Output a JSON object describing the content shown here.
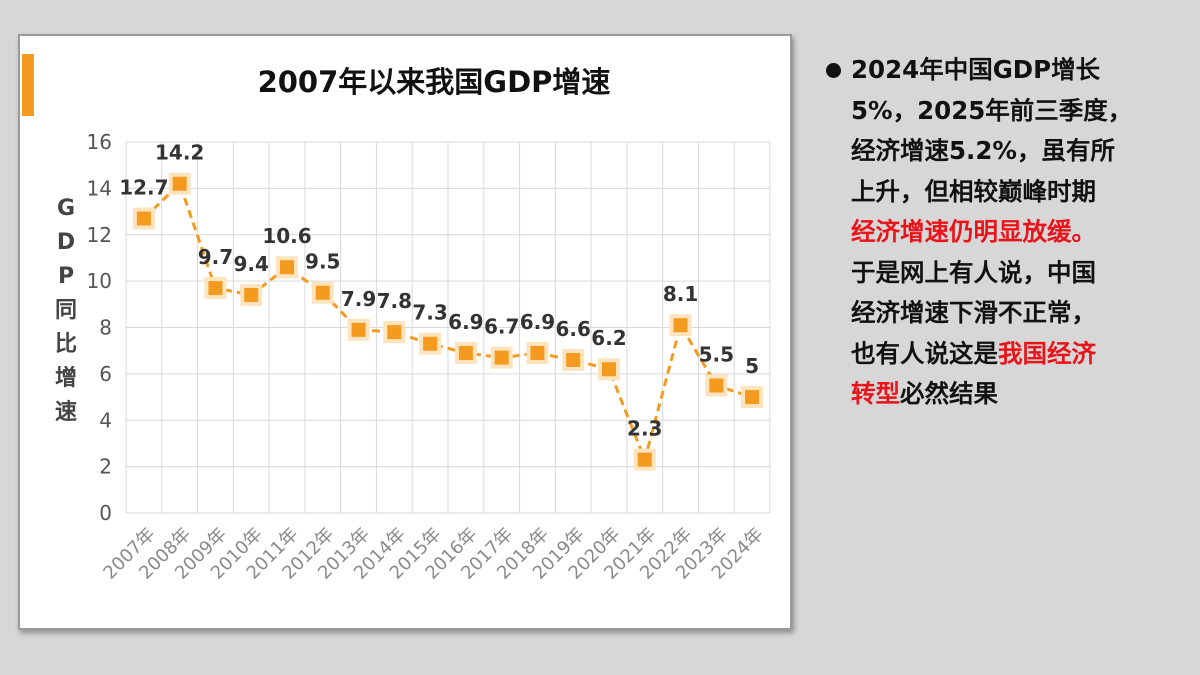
{
  "chart_data": {
    "type": "line",
    "title": "2007年以来我国GDP增速",
    "ylabel": "GDP同比增速",
    "xlabel": "",
    "categories": [
      "2007年",
      "2008年",
      "2009年",
      "2010年",
      "2011年",
      "2012年",
      "2013年",
      "2014年",
      "2015年",
      "2016年",
      "2017年",
      "2018年",
      "2019年",
      "2020年",
      "2021年",
      "2022年",
      "2023年",
      "2024年"
    ],
    "values": [
      12.7,
      14.2,
      9.7,
      9.4,
      10.6,
      9.5,
      7.9,
      7.8,
      7.3,
      6.9,
      6.7,
      6.9,
      6.6,
      6.2,
      2.3,
      8.1,
      5.5,
      5
    ],
    "data_labels": [
      "12.7",
      "14.2",
      "9.7",
      "9.4",
      "10.6",
      "9.5",
      "7.9",
      "7.8",
      "7.3",
      "6.9",
      "6.7",
      "6.9",
      "6.6",
      "6.2",
      "2.3",
      "8.1",
      "5.5",
      "5"
    ],
    "ylim": [
      0,
      16
    ],
    "yticks": [
      "0",
      "2",
      "4",
      "6",
      "8",
      "10",
      "12",
      "14",
      "16"
    ],
    "grid": true,
    "line_style": "dashed",
    "marker": "square",
    "colors": {
      "line": "#f39a1f",
      "marker": "#f39a1f",
      "marker_glow": "#fde4bf",
      "grid": "#d9d9d9",
      "accent": "#f39a1f"
    }
  },
  "side_text": {
    "segments": [
      {
        "text": "2024年中国GDP增长\n5%，2025年前三季度，\n经济增速5.2%，虽有所\n上升，但相较巅峰时期\n",
        "highlight": false
      },
      {
        "text": "经济增速仍明显放缓。",
        "highlight": true
      },
      {
        "text": "\n于是网上有人说，中国\n经济增速下滑不正常，\n也有人说这是",
        "highlight": false
      },
      {
        "text": "我国经济\n转型",
        "highlight": true
      },
      {
        "text": "必然结果",
        "highlight": false
      }
    ],
    "highlight_color": "#e8141a"
  }
}
